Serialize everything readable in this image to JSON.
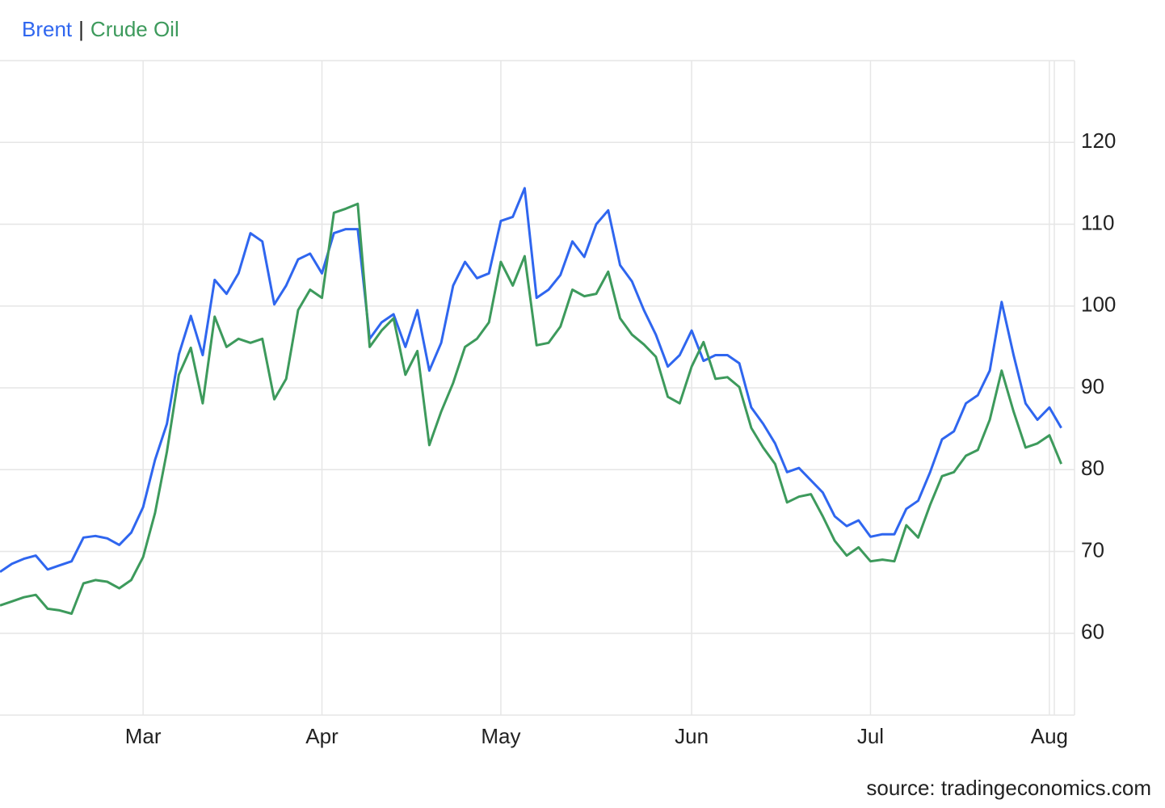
{
  "chart_data": {
    "type": "line",
    "legend_separator": "|",
    "source": "source: tradingeconomics.com",
    "categories": [
      null,
      null,
      null,
      null,
      null,
      null,
      null,
      null,
      null,
      null,
      null,
      null,
      "Mar",
      null,
      null,
      null,
      null,
      null,
      null,
      null,
      null,
      null,
      null,
      null,
      null,
      null,
      null,
      "Apr",
      null,
      null,
      null,
      null,
      null,
      null,
      null,
      null,
      null,
      null,
      null,
      null,
      null,
      null,
      "May",
      null,
      null,
      null,
      null,
      null,
      null,
      null,
      null,
      null,
      null,
      null,
      null,
      null,
      null,
      null,
      "Jun",
      null,
      null,
      null,
      null,
      null,
      null,
      null,
      null,
      null,
      null,
      null,
      null,
      null,
      null,
      "Jul",
      null,
      null,
      null,
      null,
      null,
      null,
      null,
      null,
      null,
      null,
      null,
      null,
      null,
      null,
      "Aug",
      null
    ],
    "series": [
      {
        "name": "Brent",
        "color": "#2f66ef",
        "values": [
          67.5,
          68.5,
          69.1,
          69.5,
          67.8,
          68.3,
          68.8,
          71.7,
          71.9,
          71.6,
          70.8,
          72.3,
          75.4,
          81.2,
          85.6,
          94.1,
          98.8,
          94,
          103.2,
          101.5,
          104,
          108.9,
          107.9,
          100.2,
          102.5,
          105.7,
          106.4,
          104,
          108.9,
          109.4,
          109.4,
          96,
          98,
          99,
          95,
          99.5,
          92.1,
          95.5,
          102.5,
          105.4,
          103.4,
          104,
          110.4,
          110.9,
          114.4,
          101,
          102,
          103.8,
          107.9,
          106,
          110,
          111.7,
          105,
          103,
          99.5,
          96.5,
          92.6,
          94,
          97,
          93.3,
          94,
          94,
          93,
          87.6,
          85.6,
          83.2,
          79.7,
          80.2,
          78.7,
          77.2,
          74.3,
          73.1,
          73.8,
          71.8,
          72.1,
          72.1,
          75.2,
          76.2,
          79.7,
          83.7,
          84.7,
          88.1,
          89.1,
          92.1,
          100.5,
          94,
          88.1,
          86.1,
          87.6,
          85.1
        ]
      },
      {
        "name": "Crude Oil",
        "color": "#3d9a5c",
        "values": [
          63.4,
          63.9,
          64.4,
          64.7,
          63,
          62.8,
          62.4,
          66.1,
          66.5,
          66.3,
          65.5,
          66.5,
          69.3,
          74.7,
          82.2,
          91.6,
          94.9,
          88.1,
          98.7,
          95,
          96,
          95.5,
          96,
          88.6,
          91.1,
          99.5,
          102,
          101,
          111.4,
          111.9,
          112.5,
          95,
          97,
          98.5,
          91.6,
          94.5,
          83,
          87.1,
          90.6,
          95,
          96,
          98,
          105.4,
          102.5,
          106.1,
          95.2,
          95.5,
          97.5,
          102,
          101.2,
          101.5,
          104.2,
          98.5,
          96.5,
          95.3,
          93.8,
          88.9,
          88.1,
          92.6,
          95.6,
          91.1,
          91.3,
          90.1,
          85.1,
          82.7,
          80.7,
          76,
          76.7,
          77,
          74.3,
          71.3,
          69.5,
          70.5,
          68.8,
          69,
          68.8,
          73.2,
          71.7,
          75.7,
          79.2,
          79.7,
          81.7,
          82.4,
          86.1,
          92.1,
          87.1,
          82.7,
          83.2,
          84.2,
          80.7
        ]
      }
    ],
    "ylim": [
      50,
      130
    ],
    "yticks": [
      60,
      70,
      80,
      90,
      100,
      110,
      120
    ],
    "grid": true
  }
}
